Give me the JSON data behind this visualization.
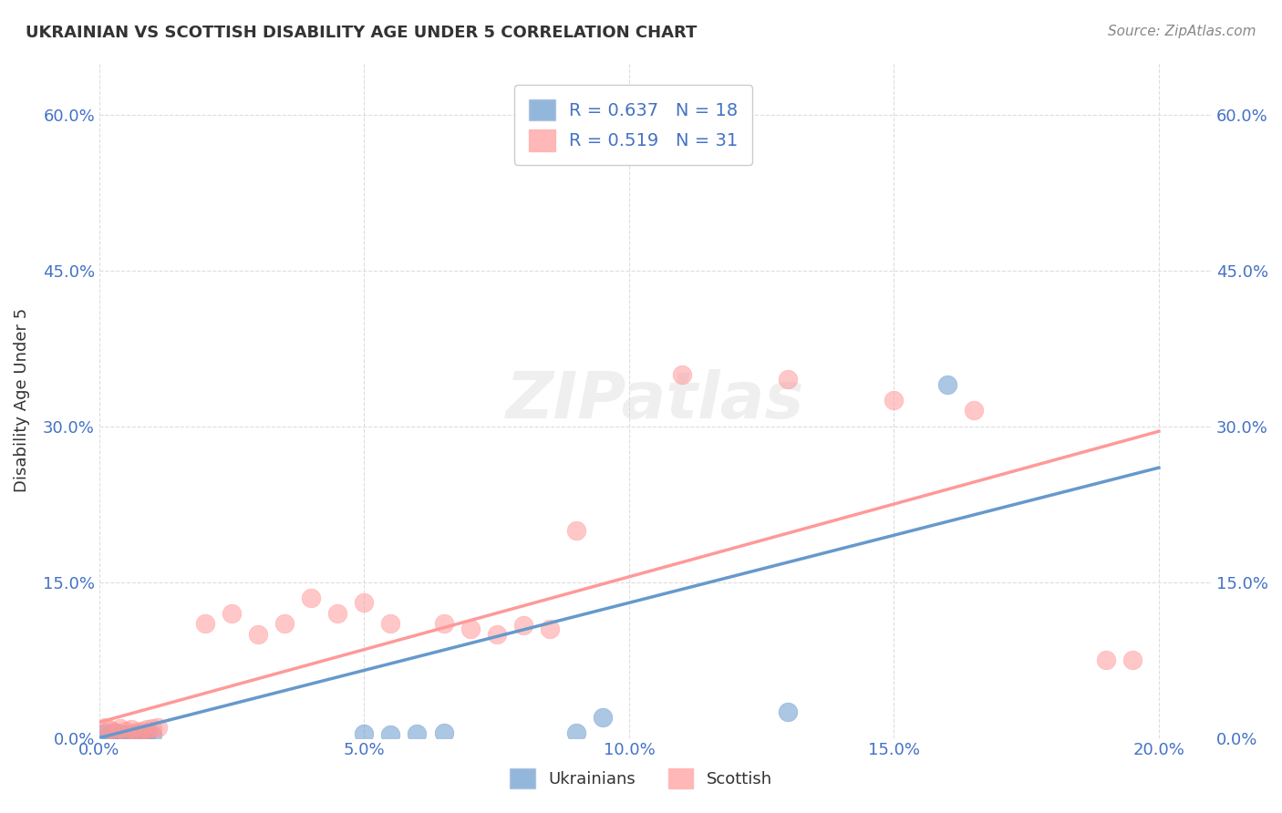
{
  "title": "UKRAINIAN VS SCOTTISH DISABILITY AGE UNDER 5 CORRELATION CHART",
  "source": "Source: ZipAtlas.com",
  "ylabel": "Disability Age Under 5",
  "xlim": [
    0.0,
    0.21
  ],
  "ylim": [
    0.0,
    0.65
  ],
  "legend_r1": "R = 0.637   N = 18",
  "legend_r2": "R = 0.519   N = 31",
  "blue_color": "#6699CC",
  "pink_color": "#FF9999",
  "blue_scatter": [
    [
      0.001,
      0.005
    ],
    [
      0.002,
      0.003
    ],
    [
      0.003,
      0.005
    ],
    [
      0.004,
      0.004
    ],
    [
      0.005,
      0.003
    ],
    [
      0.006,
      0.003
    ],
    [
      0.007,
      0.004
    ],
    [
      0.008,
      0.003
    ],
    [
      0.009,
      0.005
    ],
    [
      0.01,
      0.003
    ],
    [
      0.05,
      0.004
    ],
    [
      0.055,
      0.003
    ],
    [
      0.06,
      0.004
    ],
    [
      0.065,
      0.005
    ],
    [
      0.09,
      0.005
    ],
    [
      0.095,
      0.02
    ],
    [
      0.13,
      0.025
    ],
    [
      0.16,
      0.34
    ]
  ],
  "pink_scatter": [
    [
      0.001,
      0.01
    ],
    [
      0.002,
      0.008
    ],
    [
      0.003,
      0.006
    ],
    [
      0.004,
      0.009
    ],
    [
      0.005,
      0.007
    ],
    [
      0.006,
      0.008
    ],
    [
      0.007,
      0.006
    ],
    [
      0.008,
      0.007
    ],
    [
      0.009,
      0.008
    ],
    [
      0.01,
      0.009
    ],
    [
      0.011,
      0.01
    ],
    [
      0.02,
      0.11
    ],
    [
      0.025,
      0.12
    ],
    [
      0.03,
      0.1
    ],
    [
      0.035,
      0.11
    ],
    [
      0.04,
      0.135
    ],
    [
      0.045,
      0.12
    ],
    [
      0.05,
      0.13
    ],
    [
      0.055,
      0.11
    ],
    [
      0.065,
      0.11
    ],
    [
      0.07,
      0.105
    ],
    [
      0.075,
      0.1
    ],
    [
      0.08,
      0.108
    ],
    [
      0.085,
      0.105
    ],
    [
      0.09,
      0.2
    ],
    [
      0.11,
      0.35
    ],
    [
      0.13,
      0.345
    ],
    [
      0.15,
      0.325
    ],
    [
      0.165,
      0.315
    ],
    [
      0.19,
      0.075
    ],
    [
      0.195,
      0.075
    ]
  ],
  "blue_line_x": [
    0.0,
    0.2
  ],
  "blue_line_y": [
    0.0,
    0.26
  ],
  "pink_line_x": [
    0.0,
    0.2
  ],
  "pink_line_y": [
    0.015,
    0.295
  ],
  "watermark": "ZIPatlas",
  "background_color": "#FFFFFF",
  "grid_color": "#DDDDDD",
  "xticks": [
    0.0,
    0.05,
    0.1,
    0.15,
    0.2
  ],
  "yticks": [
    0.0,
    0.15,
    0.3,
    0.45,
    0.6
  ],
  "tick_color": "#4472C4",
  "label_color": "#333333",
  "source_color": "#888888"
}
